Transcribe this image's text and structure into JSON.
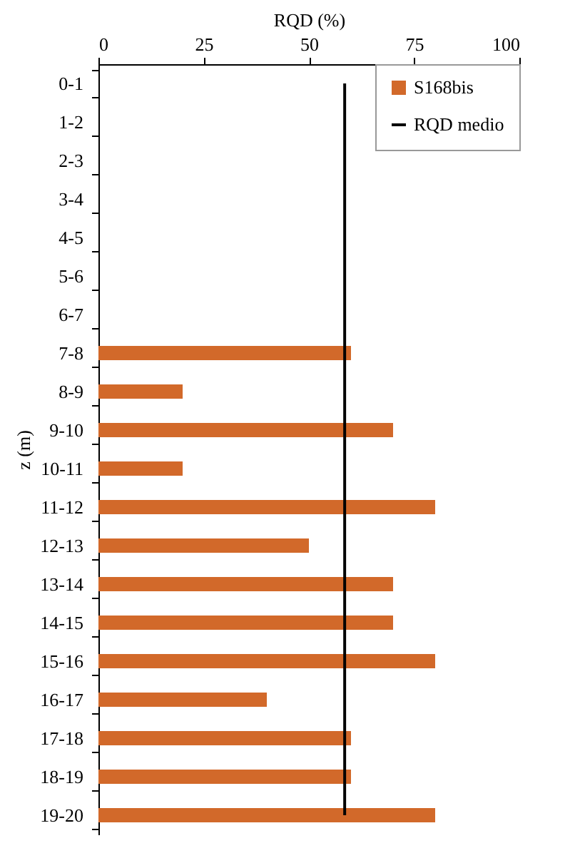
{
  "chart_data": {
    "type": "bar",
    "orientation": "horizontal",
    "xlabel": "RQD (%)",
    "ylabel": "z (m)",
    "categories": [
      "0-1",
      "1-2",
      "2-3",
      "3-4",
      "4-5",
      "5-6",
      "6-7",
      "7-8",
      "8-9",
      "9-10",
      "10-11",
      "11-12",
      "12-13",
      "13-14",
      "14-15",
      "15-16",
      "16-17",
      "17-18",
      "18-19",
      "19-20"
    ],
    "series": [
      {
        "name": "S168bis",
        "color": "#d2692a",
        "values": [
          null,
          null,
          null,
          null,
          null,
          null,
          null,
          60,
          20,
          70,
          20,
          80,
          50,
          70,
          70,
          80,
          40,
          60,
          60,
          80
        ]
      }
    ],
    "xlim": [
      0,
      100
    ],
    "xticks": [
      0,
      25,
      50,
      75,
      100
    ],
    "ref_lines": [
      {
        "axis": "x",
        "value": 58.5,
        "label": "RQD medio",
        "color": "#000000"
      }
    ],
    "legend": "top right",
    "grid": false
  }
}
